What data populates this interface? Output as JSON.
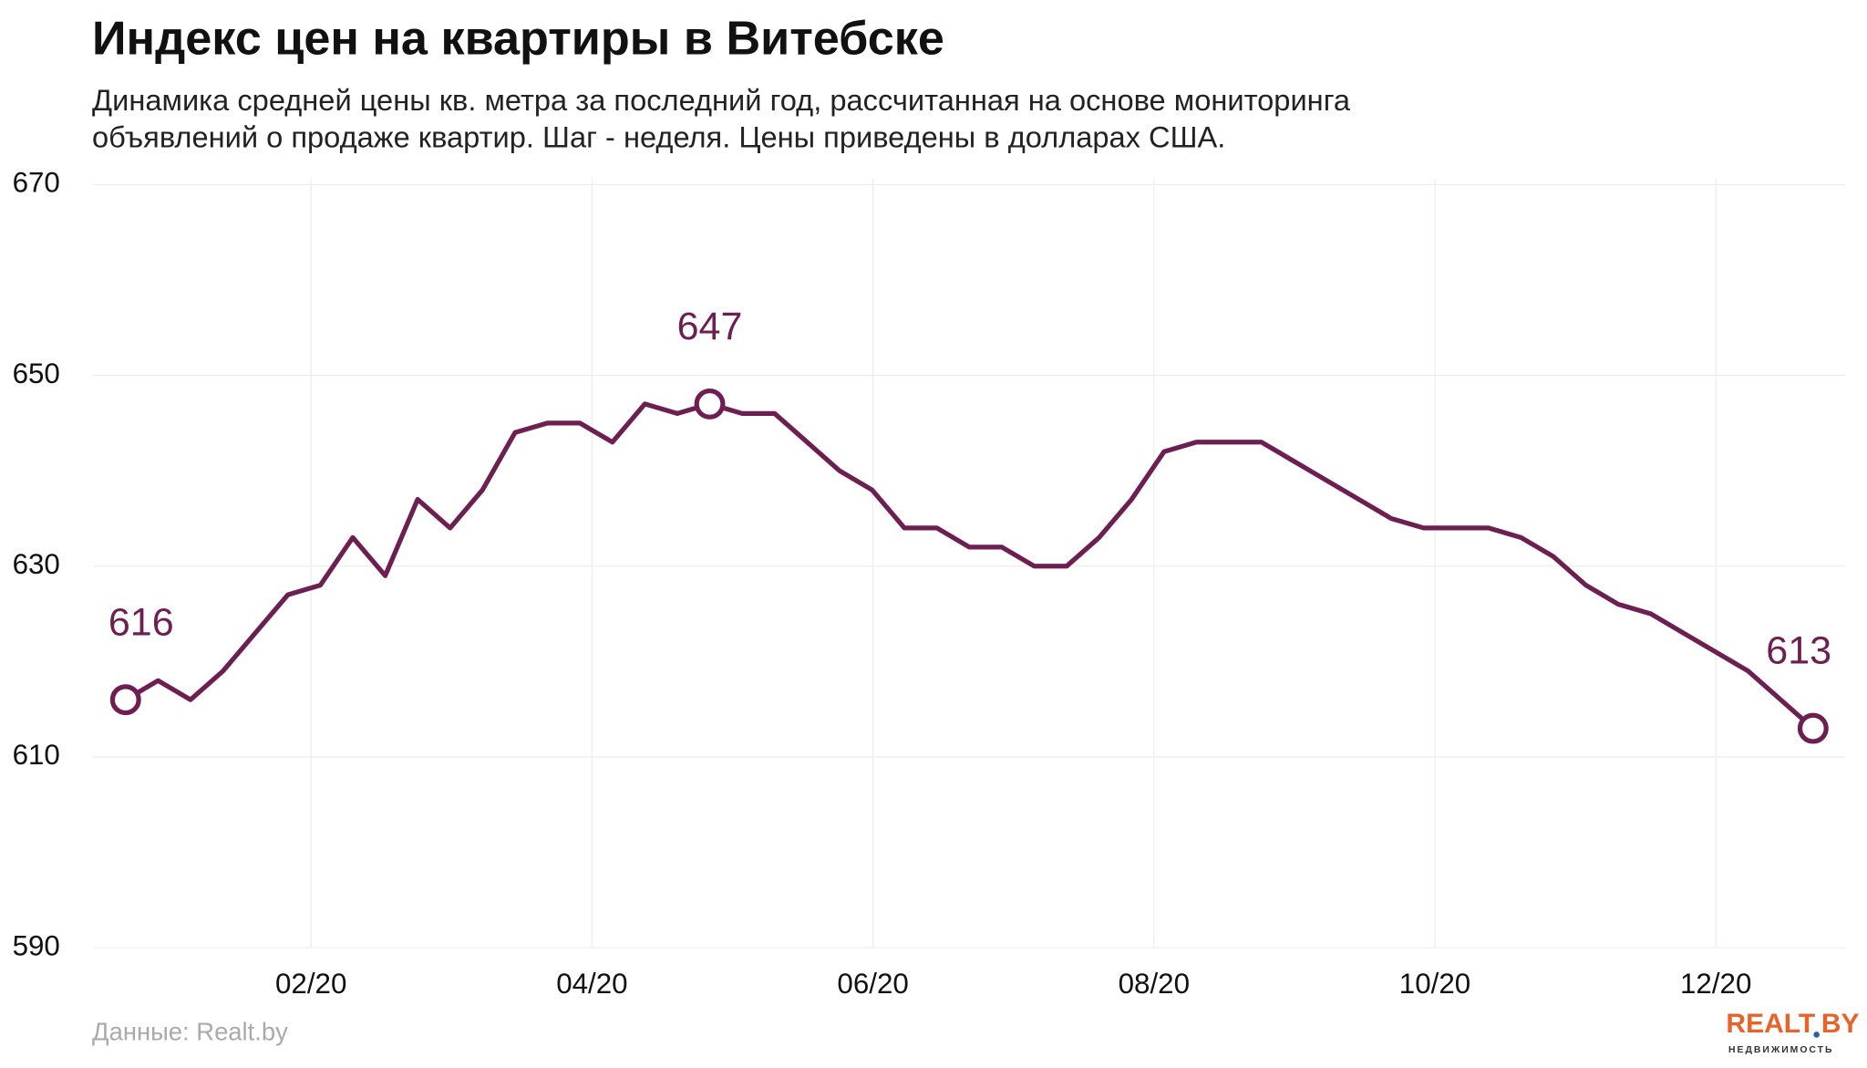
{
  "chart_data": {
    "type": "line",
    "title": "Индекс цен на квартиры в Витебске",
    "subtitle": [
      "Динамика средней цены кв. метра за последний год, рассчитанная на основе мониторинга",
      "объявлений о продаже квартир. Шаг - неделя. Цены приведены в долларах США."
    ],
    "source": "Данные: Realt.by",
    "logo": {
      "name": "REALT",
      "domain": "BY",
      "tagline": "НЕДВИЖИМОСТЬ"
    },
    "color": "#6e1f52",
    "grid": true,
    "x": [
      0.68,
      0.911,
      1.142,
      1.373,
      1.604,
      1.835,
      2.066,
      2.297,
      2.528,
      2.759,
      2.99,
      3.221,
      3.452,
      3.683,
      3.914,
      4.145,
      4.376,
      4.607,
      4.838,
      5.069,
      5.3,
      5.531,
      5.762,
      5.993,
      6.224,
      6.455,
      6.686,
      6.917,
      7.148,
      7.379,
      7.61,
      7.841,
      8.072,
      8.303,
      8.534,
      8.765,
      8.996,
      9.227,
      9.458,
      9.689,
      9.92,
      10.151,
      10.382,
      10.613,
      10.844,
      11.075,
      11.306,
      11.537,
      11.768,
      11.999,
      12.23,
      12.461,
      12.692
    ],
    "values": [
      616,
      618,
      616,
      619,
      623,
      627,
      628,
      633,
      629,
      637,
      634,
      638,
      644,
      645,
      645,
      643,
      647,
      646,
      647,
      646,
      646,
      643,
      640,
      638,
      634,
      634,
      632,
      632,
      630,
      630,
      633,
      637,
      642,
      643,
      643,
      643,
      641,
      639,
      637,
      635,
      634,
      634,
      634,
      633,
      631,
      628,
      626,
      625,
      623,
      621,
      619,
      616,
      613
    ],
    "labeled_points": [
      0,
      18,
      52
    ],
    "xlim": [
      0.45,
      12.92
    ],
    "xticks": [
      {
        "value": 2,
        "label": "02/20"
      },
      {
        "value": 4,
        "label": "04/20"
      },
      {
        "value": 6,
        "label": "06/20"
      },
      {
        "value": 8,
        "label": "08/20"
      },
      {
        "value": 10,
        "label": "10/20"
      },
      {
        "value": 12,
        "label": "12/20"
      }
    ],
    "ylim": [
      590,
      670
    ],
    "yticks": [
      590,
      610,
      630,
      650,
      670
    ]
  }
}
